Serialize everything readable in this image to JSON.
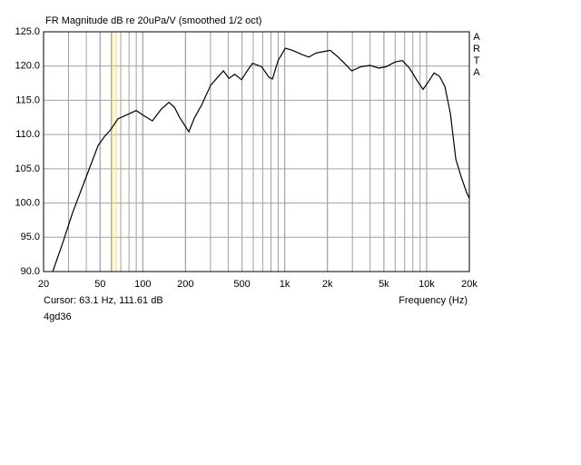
{
  "chart_data": {
    "type": "line",
    "title": "FR Magnitude dB re 20uPa/V (smoothed 1/2 oct)",
    "watermark": "ARTA",
    "x_label": "Frequency (Hz)",
    "cursor_label": "Cursor: 63.1 Hz, 111.61 dB",
    "cursor_x": 63.1,
    "cursor_color": "#f0e040",
    "footer": "4gd36",
    "x_log": true,
    "minor_grid": true,
    "grid": true,
    "xlim": [
      20,
      20000
    ],
    "ylim": [
      90,
      125
    ],
    "xticks": [
      20,
      50,
      100,
      200,
      500,
      {
        "value": 1000,
        "label": "1k"
      },
      {
        "value": 2000,
        "label": "2k"
      },
      {
        "value": 5000,
        "label": "5k"
      },
      {
        "value": 10000,
        "label": "10k"
      },
      {
        "value": 20000,
        "label": "20k"
      }
    ],
    "yticks": [
      {
        "value": 90,
        "label": "90.0"
      },
      {
        "value": 95,
        "label": "95.0"
      },
      {
        "value": 100,
        "label": "100.0"
      },
      {
        "value": 105,
        "label": "105.0"
      },
      {
        "value": 110,
        "label": "110.0"
      },
      {
        "value": 115,
        "label": "115.0"
      },
      {
        "value": 120,
        "label": "120.0"
      },
      {
        "value": 125,
        "label": "125.0"
      }
    ],
    "x": [
      23.2,
      27.6,
      31.9,
      39.9,
      48.5,
      53.7,
      59.3,
      66.8,
      77.5,
      90,
      101,
      117,
      135,
      153,
      167,
      182,
      211,
      231,
      261,
      301,
      338,
      370,
      405,
      444,
      497,
      544,
      594,
      689,
      772,
      820,
      898,
      1011,
      1137,
      1318,
      1479,
      1662,
      1865,
      2092,
      2352,
      2640,
      2965,
      3436,
      3980,
      4610,
      5180,
      6000,
      6740,
      7570,
      8500,
      9440,
      10300,
      11270,
      12330,
      13460,
      14700,
      16070,
      17540,
      19160,
      20000
    ],
    "series": [
      {
        "color": "#000000",
        "values": [
          90,
          94.5,
          98.5,
          103.8,
          108.4,
          109.7,
          110.7,
          112.3,
          112.9,
          113.5,
          112.8,
          112,
          113.7,
          114.7,
          114,
          112.5,
          110.4,
          112.4,
          114.4,
          117.2,
          118.4,
          119.3,
          118.2,
          118.8,
          118,
          119.3,
          120.4,
          119.9,
          118.4,
          118.1,
          120.8,
          122.6,
          122.3,
          121.7,
          121.3,
          121.9,
          122.1,
          122.3,
          121.4,
          120.4,
          119.3,
          119.9,
          120.1,
          119.7,
          119.9,
          120.6,
          120.8,
          119.7,
          118,
          116.6,
          117.7,
          119,
          118.5,
          117,
          113.1,
          106.4,
          103.8,
          101.5,
          100.7
        ]
      }
    ]
  }
}
